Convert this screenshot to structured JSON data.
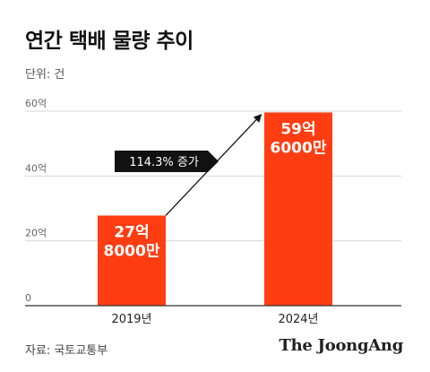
{
  "title": "연간 택배 물량 추이",
  "unit_label": "단위: 건",
  "source": "자료: 국토교통부",
  "logo_text": "The JoongAng",
  "colors": {
    "bar": "#ff3d12",
    "grid": "#d8d8d8",
    "axis": "#333333",
    "badge_bg": "#111111",
    "badge_text": "#ffffff"
  },
  "annotation": {
    "text": "114.3% 증가"
  },
  "chart_data": {
    "type": "bar",
    "title": "연간 택배 물량 추이",
    "xlabel": "",
    "ylabel": "",
    "unit": "억",
    "categories": [
      "2019년",
      "2024년"
    ],
    "values": [
      27.8,
      59.6
    ],
    "data_labels": [
      [
        "27억",
        "8000만"
      ],
      [
        "59억",
        "6000만"
      ]
    ],
    "ylim": [
      0,
      60
    ],
    "yticks": [
      0,
      20,
      40,
      60
    ],
    "ytick_labels": [
      "0",
      "20억",
      "40억",
      "60억"
    ],
    "grid": true,
    "legend": "none"
  }
}
